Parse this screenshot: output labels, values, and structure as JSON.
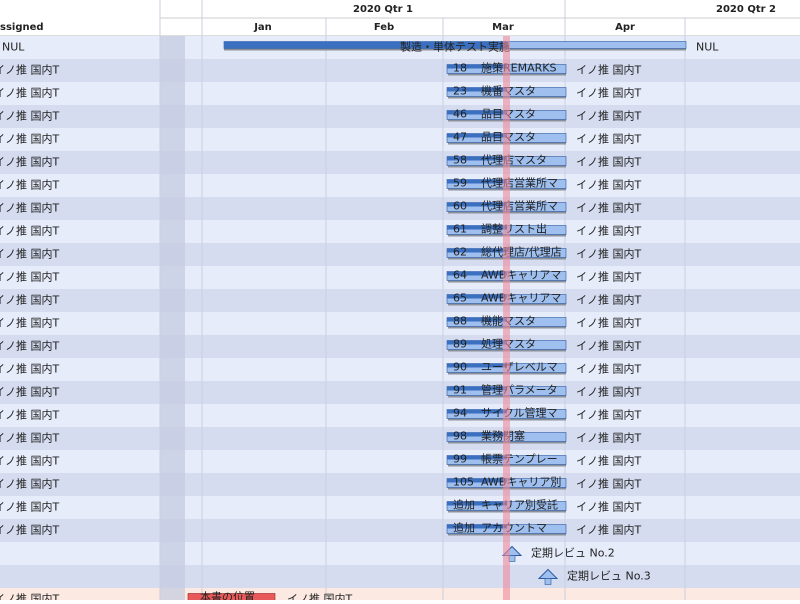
{
  "header": {
    "left_column": "ssigned",
    "quarters": [
      "2020 Qtr 1",
      "2020 Qtr 2"
    ],
    "months": [
      "Jan",
      "Feb",
      "Mar",
      "Apr"
    ]
  },
  "summary": {
    "assigned": "NUL",
    "bar_label": "製造・単体テスト実施",
    "resource": "NUL"
  },
  "tasks": [
    {
      "assigned": "イノ推 国内T",
      "id": "18",
      "name": "施策REMARKS",
      "resource": "イノ推 国内T"
    },
    {
      "assigned": "イノ推 国内T",
      "id": "23",
      "name": "機番マスタ",
      "resource": "イノ推 国内T"
    },
    {
      "assigned": "イノ推 国内T",
      "id": "46",
      "name": "品目マスタ",
      "resource": "イノ推 国内T"
    },
    {
      "assigned": "イノ推 国内T",
      "id": "47",
      "name": "品目マスタ",
      "resource": "イノ推 国内T"
    },
    {
      "assigned": "イノ推 国内T",
      "id": "58",
      "name": "代理店マスタ",
      "resource": "イノ推 国内T"
    },
    {
      "assigned": "イノ推 国内T",
      "id": "59",
      "name": "代理店営業所マ",
      "resource": "イノ推 国内T"
    },
    {
      "assigned": "イノ推 国内T",
      "id": "60",
      "name": "代理店営業所マ",
      "resource": "イノ推 国内T"
    },
    {
      "assigned": "イノ推 国内T",
      "id": "61",
      "name": "調整リスト出",
      "resource": "イノ推 国内T"
    },
    {
      "assigned": "イノ推 国内T",
      "id": "62",
      "name": "総代理店/代理店",
      "resource": "イノ推 国内T"
    },
    {
      "assigned": "イノ推 国内T",
      "id": "64",
      "name": "AWBキャリアマ",
      "resource": "イノ推 国内T"
    },
    {
      "assigned": "イノ推 国内T",
      "id": "65",
      "name": "AWBキャリアマ",
      "resource": "イノ推 国内T"
    },
    {
      "assigned": "イノ推 国内T",
      "id": "88",
      "name": "機能マスタ",
      "resource": "イノ推 国内T"
    },
    {
      "assigned": "イノ推 国内T",
      "id": "89",
      "name": "処理マスタ",
      "resource": "イノ推 国内T"
    },
    {
      "assigned": "イノ推 国内T",
      "id": "90",
      "name": "ユーザレベルマ",
      "resource": "イノ推 国内T"
    },
    {
      "assigned": "イノ推 国内T",
      "id": "91",
      "name": "管理パラメータ",
      "resource": "イノ推 国内T"
    },
    {
      "assigned": "イノ推 国内T",
      "id": "94",
      "name": "サイクル管理マ",
      "resource": "イノ推 国内T"
    },
    {
      "assigned": "イノ推 国内T",
      "id": "98",
      "name": "業務閉塞",
      "resource": "イノ推 国内T"
    },
    {
      "assigned": "イノ推 国内T",
      "id": "99",
      "name": "帳票テンプレー",
      "resource": "イノ推 国内T"
    },
    {
      "assigned": "イノ推 国内T",
      "id": "105",
      "name": "AWBキャリア別",
      "resource": "イノ推 国内T"
    },
    {
      "assigned": "イノ推 国内T",
      "id": "追加",
      "name": "キャリア別受託",
      "resource": "イノ推 国内T"
    },
    {
      "assigned": "イノ推 国内T",
      "id": "追加",
      "name": "アカウントマ",
      "resource": "イノ推 国内T"
    }
  ],
  "milestones": [
    "定期レビュ No.2",
    "定期レビュ No.3"
  ],
  "last_row": {
    "assigned": "イノ推 国内T",
    "bar_label": "本書の位置",
    "resource": "イノ推 国内T"
  }
}
